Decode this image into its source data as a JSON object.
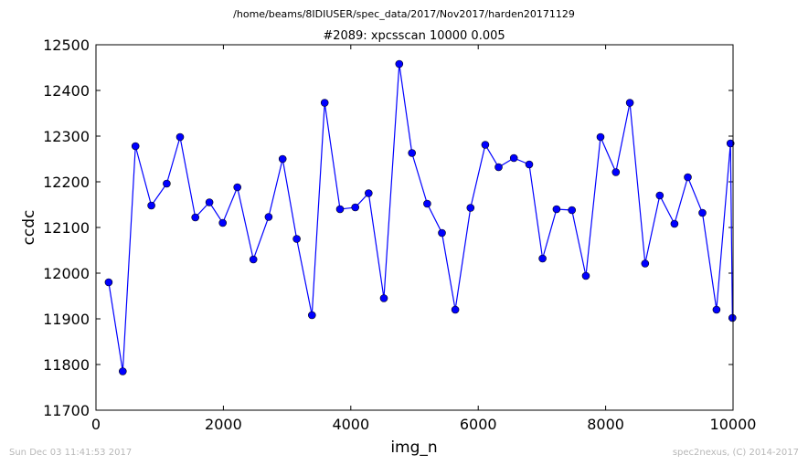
{
  "figure": {
    "suptitle": "/home/beams/8IDIUSER/spec_data/2017/Nov2017/harden20171129",
    "footer_left": "Sun Dec 03 11:41:53 2017",
    "footer_right": "spec2nexus, (C) 2014-2017"
  },
  "chart_data": {
    "type": "line",
    "title": "#2089: xpcsscan 10000 0.005",
    "xlabel": "img_n",
    "ylabel": "ccdc",
    "xlim": [
      0,
      10000
    ],
    "ylim": [
      11700,
      12500
    ],
    "xticks": [
      0,
      2000,
      4000,
      6000,
      8000,
      10000
    ],
    "yticks": [
      11700,
      11800,
      11900,
      12000,
      12100,
      12200,
      12300,
      12400,
      12500
    ],
    "xtick_labels": [
      "0",
      "2000",
      "4000",
      "6000",
      "8000",
      "10000"
    ],
    "ytick_labels": [
      "11700",
      "11800",
      "11900",
      "12000",
      "12100",
      "12200",
      "12300",
      "12400",
      "12500"
    ],
    "grid": false,
    "color": "#0000ff",
    "marker": "circle",
    "series": [
      {
        "x": [
          200,
          420,
          620,
          870,
          1110,
          1320,
          1560,
          1780,
          1990,
          2220,
          2470,
          2710,
          2930,
          3150,
          3390,
          3590,
          3830,
          4070,
          4280,
          4520,
          4760,
          4960,
          5200,
          5430,
          5640,
          5880,
          6110,
          6320,
          6560,
          6800,
          7010,
          7230,
          7470,
          7690,
          7920,
          8160,
          8380,
          8620,
          8850,
          9080,
          9290,
          9520,
          9740,
          9960,
          9990
        ],
        "y": [
          11980,
          11785,
          12278,
          12148,
          12196,
          12298,
          12122,
          12155,
          12110,
          12188,
          12030,
          12123,
          12250,
          12075,
          11908,
          12373,
          12140,
          12144,
          12175,
          11945,
          12458,
          12263,
          12152,
          12088,
          11920,
          12143,
          12281,
          12232,
          12252,
          12238,
          12032,
          12140,
          12138,
          11994,
          12298,
          12221,
          12373,
          12021,
          12170,
          12108,
          12210,
          12132,
          11920,
          12284,
          11902
        ]
      }
    ]
  }
}
